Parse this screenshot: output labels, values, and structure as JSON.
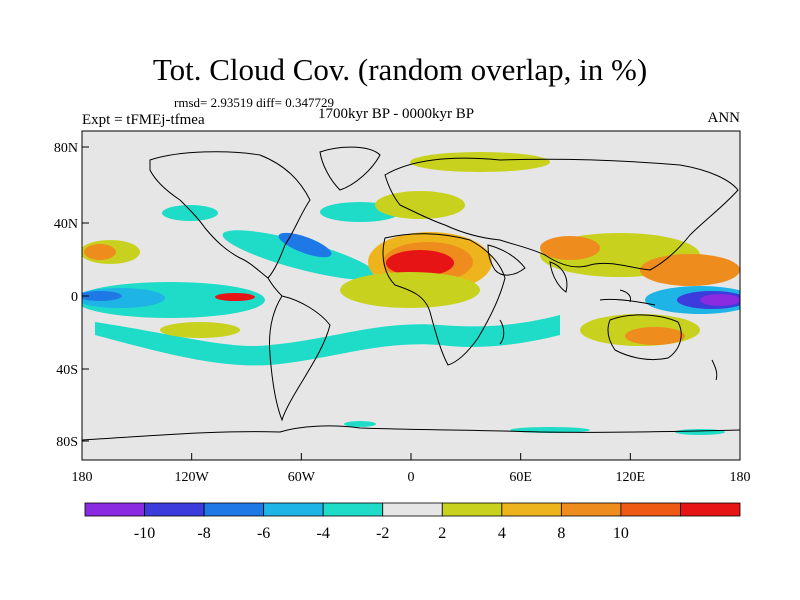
{
  "title": "Tot. Cloud Cov. (random overlap, in %)",
  "stats": "rmsd= 2.93519 diff= 0.347729",
  "experiment": "Expt = tFMEj-tfmea",
  "period": "1700kyr BP - 0000kyr BP",
  "season": "ANN",
  "lat_ticks": [
    "80N",
    "40N",
    "0",
    "40S",
    "80S"
  ],
  "lon_ticks": [
    "180",
    "120W",
    "60W",
    "0",
    "60E",
    "120E",
    "180"
  ],
  "colorbar": {
    "colors": [
      "#8a2be2",
      "#3c3cdc",
      "#1e78e6",
      "#1eb4e6",
      "#1edcc8",
      "#e6e6e6",
      "#c8d21e",
      "#eeb41e",
      "#ee8c1e",
      "#ee5a14",
      "#e61414"
    ],
    "labels": [
      "-10",
      "-8",
      "-6",
      "-4",
      "-2",
      "2",
      "4",
      "8",
      "10"
    ]
  },
  "colors": {
    "ocean_background": "#e6e6e6",
    "coastline": "#000000"
  }
}
